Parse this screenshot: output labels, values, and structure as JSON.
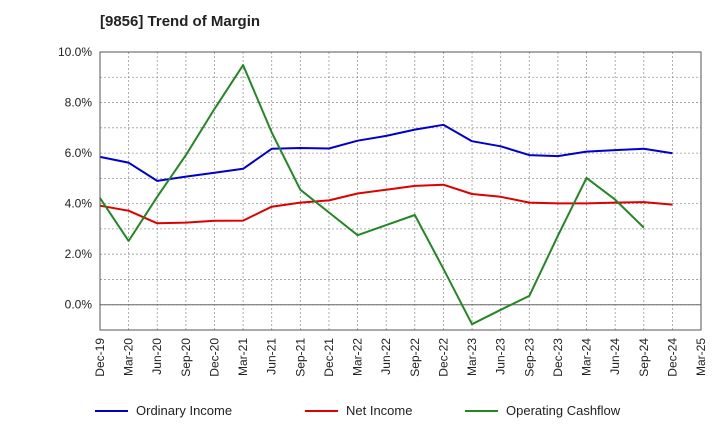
{
  "chart_data": {
    "type": "line",
    "title": "[9856]  Trend of Margin",
    "xlabel": "",
    "ylabel": "",
    "categories": [
      "Dec-19",
      "Mar-20",
      "Jun-20",
      "Sep-20",
      "Dec-20",
      "Mar-21",
      "Jun-21",
      "Sep-21",
      "Dec-21",
      "Mar-22",
      "Jun-22",
      "Sep-22",
      "Dec-22",
      "Mar-23",
      "Jun-23",
      "Sep-23",
      "Dec-23",
      "Mar-24",
      "Jun-24",
      "Sep-24",
      "Dec-24",
      "Mar-25"
    ],
    "ylim": [
      -1.0,
      10.0
    ],
    "yticks": [
      0.0,
      2.0,
      4.0,
      6.0,
      8.0,
      10.0
    ],
    "ytick_labels": [
      "0.0%",
      "2.0%",
      "4.0%",
      "6.0%",
      "8.0%",
      "10.0%"
    ],
    "grid": true,
    "legend_position": "bottom",
    "series": [
      {
        "name": "Ordinary Income",
        "color": "#0000cc",
        "values": [
          5.85,
          5.62,
          4.9,
          5.07,
          5.22,
          5.38,
          6.17,
          6.2,
          6.18,
          6.49,
          6.68,
          6.93,
          7.12,
          6.47,
          6.27,
          5.92,
          5.88,
          6.06,
          6.12,
          6.17,
          5.99,
          null
        ]
      },
      {
        "name": "Net Income",
        "color": "#dd0000",
        "values": [
          3.92,
          3.72,
          3.22,
          3.25,
          3.32,
          3.33,
          3.88,
          4.04,
          4.13,
          4.4,
          4.55,
          4.7,
          4.75,
          4.38,
          4.27,
          4.04,
          4.01,
          4.01,
          4.04,
          4.06,
          3.96,
          null
        ]
      },
      {
        "name": "Operating Cashflow",
        "color": "#228822",
        "values": [
          4.22,
          2.52,
          4.27,
          5.92,
          7.75,
          9.48,
          6.82,
          4.55,
          3.65,
          2.75,
          3.15,
          3.55,
          1.42,
          -0.77,
          -0.2,
          0.35,
          2.73,
          5.02,
          4.16,
          3.05,
          null,
          null
        ]
      }
    ]
  }
}
